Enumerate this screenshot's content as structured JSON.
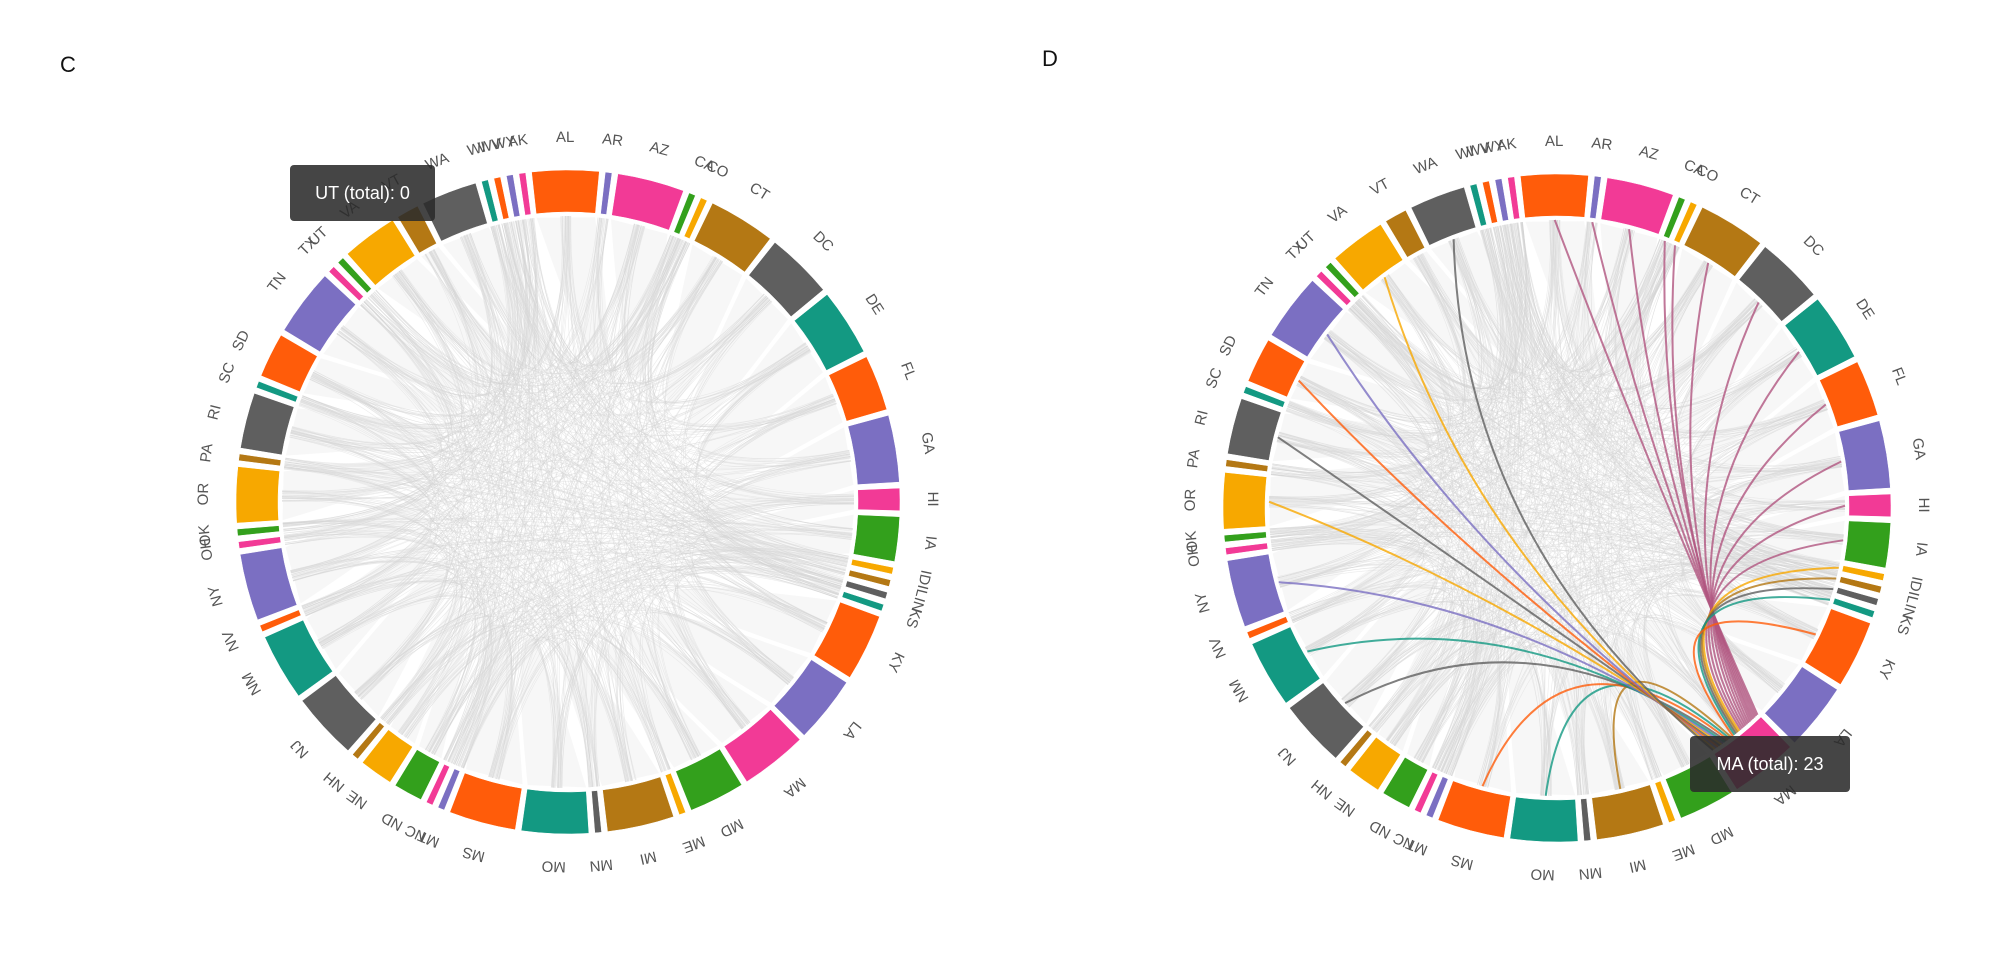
{
  "panels": [
    {
      "letter": "C",
      "tooltip": {
        "text": "UT (total): 0",
        "state": "UT"
      },
      "highlight_state": null
    },
    {
      "letter": "D",
      "tooltip": {
        "text": "MA (total): 23",
        "state": "MA"
      },
      "highlight_state": "MA"
    }
  ],
  "chart_data": {
    "type": "chord",
    "states": [
      "AL",
      "AR",
      "AZ",
      "CA",
      "CO",
      "CT",
      "DC",
      "DE",
      "FL",
      "GA",
      "HI",
      "IA",
      "ID",
      "IL",
      "IN",
      "KS",
      "KY",
      "LA",
      "MA",
      "MD",
      "ME",
      "MI",
      "MN",
      "MO",
      "MS",
      "MT",
      "NC",
      "ND",
      "NE",
      "NH",
      "NJ",
      "NM",
      "NV",
      "NY",
      "OH",
      "OK",
      "OR",
      "PA",
      "RI",
      "SC",
      "SD",
      "TN",
      "TX",
      "UT",
      "VA",
      "VT",
      "WA",
      "WI",
      "WV",
      "WY",
      "AK"
    ],
    "ring_order": [
      "AL",
      "AR",
      "AZ",
      "CA",
      "CO",
      "CT",
      "DC",
      "DE",
      "FL",
      "GA",
      "HI",
      "IA",
      "ID",
      "IL",
      "IN",
      "KS",
      "KY",
      "LA",
      "MA",
      "MD",
      "ME",
      "MI",
      "MN",
      "MO",
      "MS",
      "MT",
      "NC",
      "ND",
      "NE",
      "NH",
      "NJ",
      "NM",
      "NV",
      "NY",
      "OH",
      "OK",
      "OR",
      "PA",
      "RI",
      "SC",
      "SD",
      "TN",
      "TX",
      "UT",
      "VA",
      "VT",
      "WA",
      "WI",
      "WV",
      "WY",
      "AK"
    ],
    "weights": {
      "AL": 3,
      "AR": 0.3,
      "AZ": 3,
      "CA": 0.3,
      "CO": 0.3,
      "CT": 3,
      "DC": 3,
      "DE": 3,
      "FL": 2.5,
      "GA": 3,
      "HI": 1,
      "IA": 2,
      "ID": 0.3,
      "IL": 0.3,
      "IN": 0.3,
      "KS": 0.3,
      "KY": 3,
      "LA": 3,
      "MA": 3,
      "MD": 2.5,
      "ME": 0.3,
      "MI": 3,
      "MN": 0.3,
      "MO": 3,
      "MS": 3,
      "MT": 0.3,
      "NC": 0.3,
      "ND": 1.3,
      "NE": 1.5,
      "NH": 0.3,
      "NJ": 3,
      "NM": 3,
      "NV": 0.3,
      "NY": 3,
      "OH": 0.3,
      "OK": 0.3,
      "OR": 2.5,
      "PA": 0.3,
      "RI": 2.5,
      "SC": 0.3,
      "SD": 2,
      "TN": 3,
      "TX": 0.3,
      "UT": 0.3,
      "VA": 2.5,
      "VT": 1,
      "WA": 2.5,
      "WI": 0.3,
      "WV": 0.3,
      "WY": 0.3,
      "AK": 0.3
    },
    "colors": [
      "#ff5c0a",
      "#7b6fc2",
      "#f23a96",
      "#33a01c",
      "#f7a800",
      "#b47814",
      "#5f5f5f",
      "#139982"
    ],
    "ma_links": [
      "AL",
      "AR",
      "AZ",
      "CA",
      "CO",
      "CT",
      "DC",
      "DE",
      "FL",
      "GA",
      "HI",
      "IA",
      "ID",
      "IL",
      "IN",
      "KS",
      "KY",
      "MI",
      "MO",
      "MS",
      "NJ",
      "NM",
      "NY",
      "OR",
      "RI",
      "SD",
      "TN",
      "VA",
      "WA"
    ]
  }
}
